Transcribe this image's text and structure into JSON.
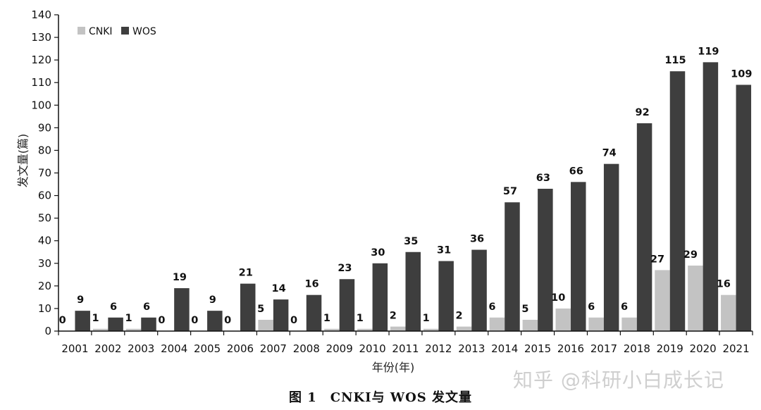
{
  "chart_data": {
    "type": "bar",
    "categories": [
      "2001",
      "2002",
      "2003",
      "2004",
      "2005",
      "2006",
      "2007",
      "2008",
      "2009",
      "2010",
      "2011",
      "2012",
      "2013",
      "2014",
      "2015",
      "2016",
      "2017",
      "2018",
      "2019",
      "2020",
      "2021"
    ],
    "series": [
      {
        "name": "CNKI",
        "color": "#c3c3c3",
        "values": [
          0,
          1,
          1,
          0,
          0,
          0,
          5,
          0,
          1,
          1,
          2,
          1,
          2,
          6,
          5,
          10,
          6,
          6,
          27,
          29,
          16
        ]
      },
      {
        "name": "WOS",
        "color": "#3e3e3e",
        "values": [
          9,
          6,
          6,
          19,
          9,
          21,
          14,
          16,
          23,
          30,
          35,
          31,
          36,
          57,
          63,
          66,
          74,
          92,
          115,
          119,
          109
        ]
      }
    ],
    "title": "",
    "xlabel": "年份(年)",
    "ylabel": "发文量(篇)",
    "ylim": [
      0,
      140
    ],
    "yticks": [
      0,
      10,
      20,
      30,
      40,
      50,
      60,
      70,
      80,
      90,
      100,
      110,
      120,
      130,
      140
    ],
    "grid": false,
    "legend_position": "top-left"
  },
  "caption": "图 1　CNKI与 WOS 发文量",
  "watermark": "知乎 @科研小白成长记"
}
